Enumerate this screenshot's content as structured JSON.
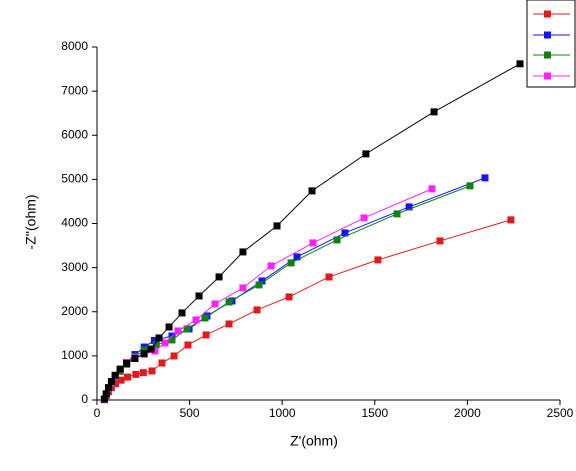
{
  "chart_data": {
    "type": "scatter-line",
    "x_label": "Z'(ohm)",
    "y_label": "-Z''(ohm)",
    "xlim": [
      0,
      2500
    ],
    "xticks": [
      0,
      500,
      1000,
      1500,
      2000,
      2500
    ],
    "ylim": [
      0,
      8000
    ],
    "yticks": [
      0,
      1000,
      2000,
      3000,
      4000,
      5000,
      6000,
      7000,
      8000
    ],
    "legend": "top-right",
    "series": [
      {
        "color": "#e31a1c",
        "x": [
          40,
          50,
          62,
          78,
          100,
          130,
          165,
          210,
          250,
          297,
          351,
          416,
          491,
          589,
          713,
          864,
          1037,
          1253,
          1517,
          1852,
          2235
        ],
        "values": [
          10,
          100,
          190,
          280,
          370,
          450,
          520,
          580,
          620,
          658,
          839,
          998,
          1247,
          1474,
          1723,
          2041,
          2336,
          2789,
          3175,
          3605,
          4082
        ]
      },
      {
        "color": "#1414ff",
        "x": [
          40,
          50,
          62,
          78,
          98,
          125,
          160,
          205,
          255,
          310,
          405,
          497,
          594,
          729,
          891,
          1080,
          1339,
          1685,
          2095
        ],
        "values": [
          10,
          120,
          240,
          380,
          520,
          680,
          850,
          1030,
          1200,
          1350,
          1450,
          1610,
          1905,
          2245,
          2698,
          3243,
          3787,
          4376,
          5034
        ]
      },
      {
        "color": "#138013",
        "x": [
          40,
          50,
          62,
          78,
          98,
          125,
          160,
          205,
          255,
          320,
          405,
          486,
          583,
          713,
          875,
          1048,
          1296,
          1620,
          2014
        ],
        "values": [
          10,
          115,
          230,
          360,
          500,
          650,
          810,
          980,
          1130,
          1250,
          1361,
          1610,
          1859,
          2222,
          2608,
          3107,
          3628,
          4218,
          4853
        ]
      },
      {
        "color": "#ff22ff",
        "x": [
          40,
          50,
          62,
          78,
          98,
          125,
          160,
          205,
          255,
          313,
          367,
          437,
          535,
          637,
          788,
          940,
          1166,
          1442,
          1809
        ],
        "values": [
          10,
          125,
          250,
          390,
          530,
          690,
          850,
          960,
          1040,
          1111,
          1293,
          1565,
          1814,
          2177,
          2540,
          3039,
          3560,
          4127,
          4785
        ]
      },
      {
        "color": "#000000",
        "x": [
          40,
          50,
          62,
          78,
          98,
          125,
          160,
          205,
          254,
          292,
          335,
          389,
          459,
          551,
          659,
          788,
          972,
          1161,
          1452,
          1820,
          2284
        ],
        "values": [
          20,
          140,
          280,
          420,
          560,
          700,
          830,
          940,
          1050,
          1156,
          1406,
          1655,
          1973,
          2358,
          2789,
          3356,
          3946,
          4739,
          5578,
          6530,
          7619
        ]
      }
    ]
  }
}
